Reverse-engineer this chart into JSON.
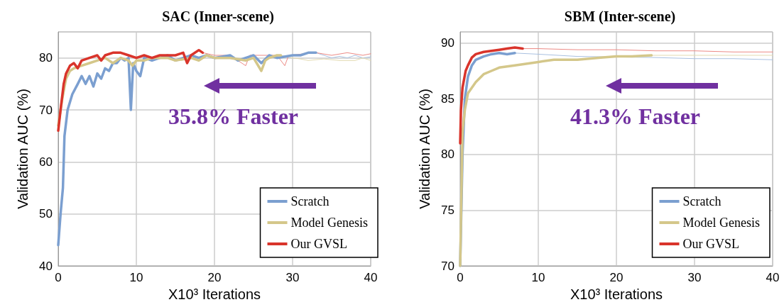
{
  "chart_data": [
    {
      "type": "line",
      "title": "SAC (Inner-scene)",
      "xlabel": "X10³ Iterations",
      "ylabel": "Validation AUC (%)",
      "xlim": [
        0,
        40
      ],
      "xticks": [
        0,
        10,
        20,
        30,
        40
      ],
      "ylim": [
        40,
        85
      ],
      "yticks": [
        40,
        50,
        60,
        70,
        80
      ],
      "grid": true,
      "legend": "bottom right",
      "marker": "none",
      "line_style": "solid",
      "annotations": [
        "35.8% Faster"
      ],
      "series": [
        {
          "name": "Scratch",
          "color": "#7b9fd0",
          "x": [
            0,
            0.3,
            0.6,
            0.8,
            1.2,
            1.8,
            2.5,
            3,
            3.5,
            4,
            4.5,
            5,
            5.5,
            6,
            6.5,
            7,
            7.5,
            8,
            8.5,
            9,
            9.3,
            9.6,
            10,
            10.5,
            11,
            12,
            13,
            14,
            15,
            16,
            17,
            18,
            19,
            20,
            22,
            23,
            24,
            25,
            26,
            27,
            28,
            30,
            31,
            32,
            33
          ],
          "values": [
            44,
            50,
            55,
            65,
            70,
            73,
            75,
            76.5,
            75,
            76.5,
            74.5,
            77,
            76,
            78,
            77.5,
            79,
            79,
            80,
            79.5,
            80,
            70,
            79,
            77.5,
            76.5,
            80,
            79.5,
            80,
            80.5,
            79.5,
            80,
            80.5,
            80,
            80.5,
            80,
            80.5,
            79.5,
            80,
            80.5,
            79,
            80.5,
            80,
            80.5,
            80.5,
            81,
            81
          ]
        },
        {
          "name": "Model Genesis",
          "color": "#d4c78a",
          "x": [
            0,
            0.5,
            1,
            1.5,
            2,
            3,
            4,
            5,
            6,
            7,
            8,
            9,
            9.5,
            10,
            11,
            12,
            14,
            15,
            17,
            18,
            19,
            20,
            22,
            24,
            25,
            26,
            26.5,
            27,
            28,
            28.5
          ],
          "values": [
            67,
            72,
            76,
            77.5,
            78,
            78.5,
            79,
            79.5,
            80,
            79,
            80,
            79.5,
            78.5,
            79.5,
            79.5,
            80,
            80,
            79.5,
            80,
            79.5,
            80.5,
            80,
            80,
            79.5,
            80,
            77.5,
            79.5,
            80,
            80.5,
            80.5
          ]
        },
        {
          "name": "Our GVSL",
          "color": "#d9342b",
          "x": [
            0,
            0.3,
            0.7,
            1,
            1.5,
            2,
            2.5,
            3,
            4,
            5,
            5.5,
            6,
            7,
            8,
            9,
            10,
            11,
            12,
            13,
            14,
            15,
            16,
            16.5,
            17,
            18,
            18.5
          ],
          "values": [
            66,
            70,
            75,
            77,
            78.5,
            79,
            78,
            79.5,
            80,
            80.5,
            79.5,
            80.5,
            81,
            81,
            80.5,
            80,
            80.5,
            80,
            80.5,
            80.5,
            80.5,
            81,
            79,
            80.5,
            81.5,
            81
          ]
        },
        {
          "color": "#a9c0e0",
          "x": [
            33,
            34,
            35,
            36,
            37,
            38,
            39,
            40
          ],
          "values": [
            81,
            80.5,
            80,
            80.3,
            80,
            80.5,
            80,
            80.2
          ]
        },
        {
          "color": "#e3dab0",
          "x": [
            28.5,
            30,
            31,
            32,
            34,
            36,
            38,
            39,
            40
          ],
          "values": [
            80.5,
            80,
            79.8,
            79.5,
            79.8,
            79.5,
            79.5,
            80,
            79.5
          ]
        },
        {
          "color": "#ec8a85",
          "x": [
            18.5,
            20,
            22,
            24,
            24.5,
            26,
            28,
            29,
            29.5,
            31,
            33,
            35,
            37,
            39,
            40
          ],
          "values": [
            81,
            80.5,
            80.5,
            78.5,
            80.5,
            80.5,
            80.5,
            78.5,
            80.5,
            null,
            81,
            80.5,
            81,
            80.5,
            80.8
          ]
        }
      ]
    },
    {
      "type": "line",
      "title": "SBM (Inter-scene)",
      "xlabel": "X10³ Iterations",
      "ylabel": "Validation AUC (%)",
      "xlim": [
        0,
        40
      ],
      "xticks": [
        0,
        10,
        20,
        30,
        40
      ],
      "ylim": [
        70,
        91
      ],
      "yticks": [
        70,
        75,
        80,
        85,
        90
      ],
      "grid": true,
      "legend": "bottom right",
      "marker": "none",
      "line_style": "solid",
      "annotations": [
        "41.3% Faster"
      ],
      "series": [
        {
          "name": "Scratch",
          "color": "#7b9fd0",
          "x": [
            0,
            0.3,
            0.6,
            1,
            1.5,
            2,
            3,
            4,
            5,
            6,
            7
          ],
          "values": [
            70,
            80,
            85,
            87,
            88,
            88.5,
            88.8,
            89,
            89.1,
            89,
            89.1
          ]
        },
        {
          "name": "Model Genesis",
          "color": "#d4c78a",
          "x": [
            0,
            0.3,
            0.6,
            1,
            2,
            3,
            4,
            5,
            7,
            10,
            12,
            15,
            18,
            20,
            22,
            24.5
          ],
          "values": [
            70,
            82,
            84,
            85.5,
            86.5,
            87.2,
            87.5,
            87.8,
            88,
            88.3,
            88.5,
            88.5,
            88.7,
            88.8,
            88.8,
            88.9
          ]
        },
        {
          "name": "Our GVSL",
          "color": "#d9342b",
          "x": [
            0,
            0.1,
            0.3,
            0.7,
            1,
            1.5,
            2,
            3,
            4,
            5,
            6,
            7,
            8
          ],
          "values": [
            81,
            84,
            86,
            87.5,
            88,
            88.7,
            89,
            89.2,
            89.3,
            89.4,
            89.5,
            89.6,
            89.5
          ]
        },
        {
          "color": "#a9c0e0",
          "x": [
            7,
            10,
            15,
            20,
            25,
            30,
            35,
            40
          ],
          "values": [
            89.1,
            89,
            88.8,
            null,
            88.7,
            88.6,
            88.6,
            88.5
          ]
        },
        {
          "color": "#e3dab0",
          "x": [
            24.5,
            30,
            35,
            40
          ],
          "values": [
            88.9,
            88.9,
            88.9,
            88.9
          ]
        },
        {
          "color": "#ec8a85",
          "x": [
            8,
            10,
            15,
            20,
            25,
            30,
            35,
            40
          ],
          "values": [
            89.5,
            89.5,
            89.4,
            89.4,
            89.3,
            89.3,
            89.2,
            89.2
          ]
        }
      ]
    }
  ]
}
